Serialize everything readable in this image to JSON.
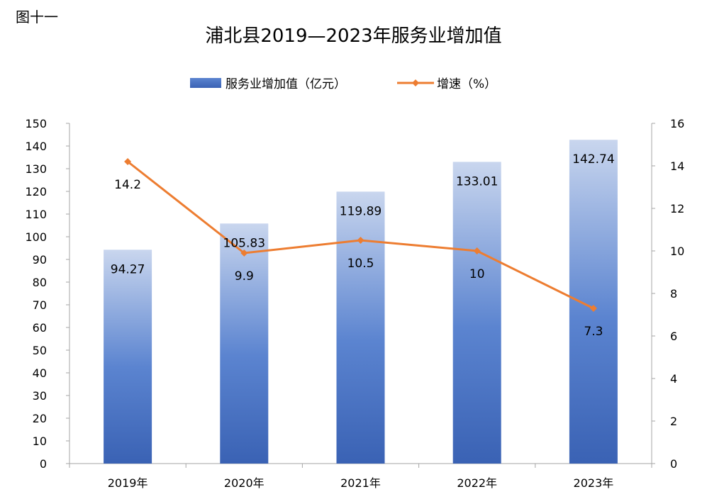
{
  "figure_label": "图十一",
  "chart_data": {
    "type": "bar",
    "title": "浦北县2019—2023年服务业增加值",
    "categories": [
      "2019年",
      "2020年",
      "2021年",
      "2022年",
      "2023年"
    ],
    "series": [
      {
        "name": "服务业增加值（亿元）",
        "type": "bar",
        "axis": "left",
        "values": [
          94.27,
          105.83,
          119.89,
          133.01,
          142.74
        ],
        "labels": [
          "94.27",
          "105.83",
          "119.89",
          "133.01",
          "142.74"
        ]
      },
      {
        "name": "增速（%）",
        "type": "line",
        "axis": "right",
        "values": [
          14.2,
          9.9,
          10.5,
          10,
          7.3
        ],
        "labels": [
          "14.2",
          "9.9",
          "10.5",
          "10",
          "7.3"
        ]
      }
    ],
    "ylim_left": [
      0,
      150
    ],
    "yticks_left": [
      0,
      10,
      20,
      30,
      40,
      50,
      60,
      70,
      80,
      90,
      100,
      110,
      120,
      130,
      140,
      150
    ],
    "ylim_right": [
      0,
      16
    ],
    "yticks_right": [
      0,
      2,
      4,
      6,
      8,
      10,
      12,
      14,
      16
    ],
    "grid": false,
    "legend": "top-center",
    "colors": {
      "bar_top": "#c9d6ee",
      "bar_mid": "#5b84d0",
      "bar_bottom": "#3a62b4",
      "line": "#ed7d31",
      "axis": "#a6a6a6"
    }
  }
}
